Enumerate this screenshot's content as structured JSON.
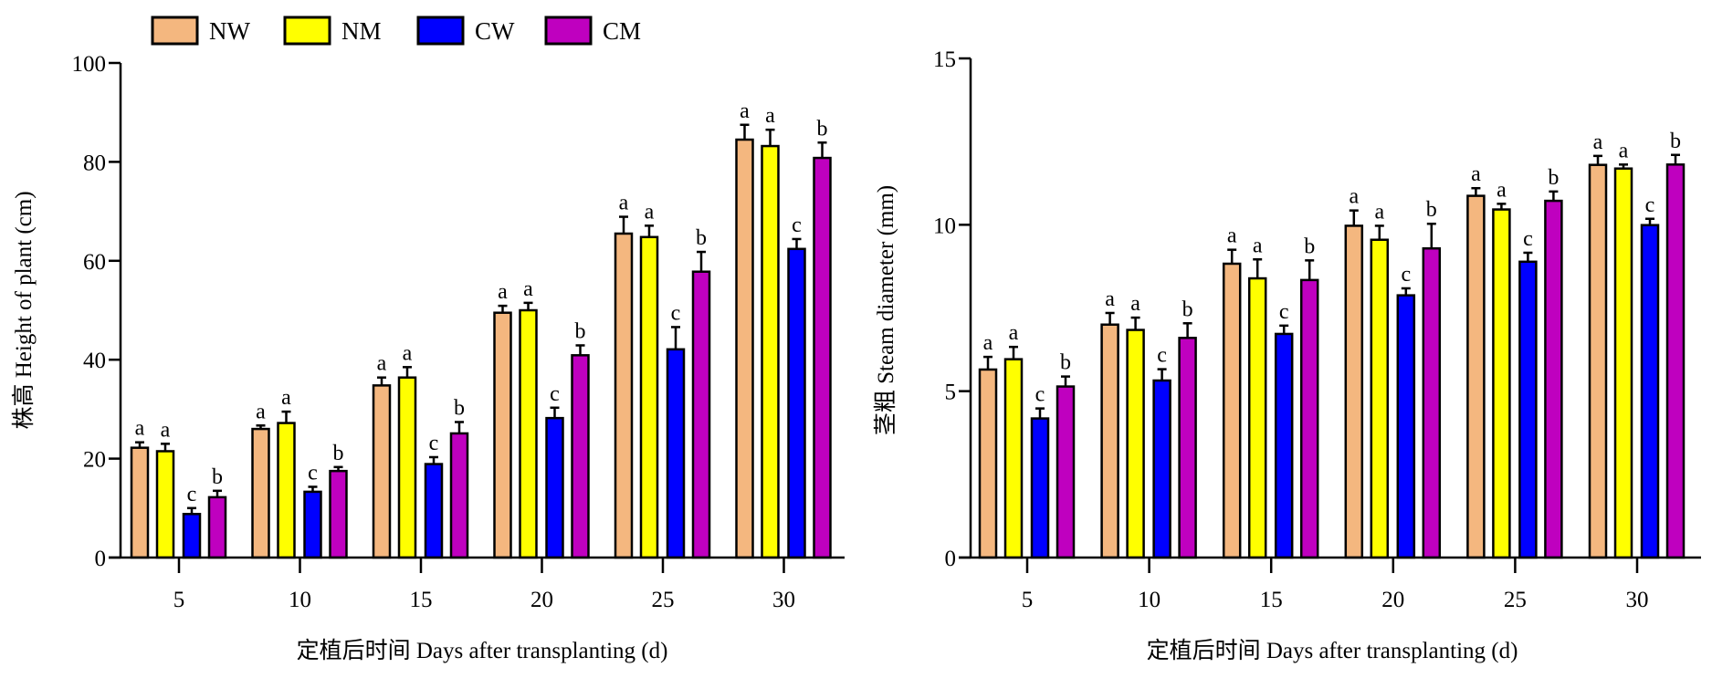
{
  "legend": [
    {
      "name": "NW",
      "color": "#F4B77F"
    },
    {
      "name": "NM",
      "color": "#FFFF00"
    },
    {
      "name": "CW",
      "color": "#0000FF"
    },
    {
      "name": "CM",
      "color": "#BF00BF"
    }
  ],
  "chart_data": [
    {
      "type": "bar",
      "title": "",
      "xlabel": "定植后时间 Days after transplanting (d)",
      "ylabel": "株高 Height of plant (cm)",
      "ylim": [
        0,
        100
      ],
      "yticks": [
        0,
        20,
        40,
        60,
        80,
        100
      ],
      "categories": [
        "5",
        "10",
        "15",
        "20",
        "25",
        "30"
      ],
      "series": [
        {
          "name": "NW",
          "values": [
            22.2,
            26.0,
            34.8,
            49.5,
            65.5,
            84.5
          ],
          "error": [
            1.1,
            0.7,
            1.6,
            1.4,
            3.4,
            3.0
          ],
          "letters": [
            "a",
            "a",
            "a",
            "a",
            "a",
            "a"
          ]
        },
        {
          "name": "NM",
          "values": [
            21.5,
            27.2,
            36.4,
            50.0,
            64.8,
            83.2
          ],
          "error": [
            1.5,
            2.3,
            2.1,
            1.5,
            2.3,
            3.3
          ],
          "letters": [
            "a",
            "a",
            "a",
            "a",
            "a",
            "a"
          ]
        },
        {
          "name": "CW",
          "values": [
            8.8,
            13.3,
            18.9,
            28.2,
            42.1,
            62.4
          ],
          "error": [
            1.2,
            1.0,
            1.4,
            2.1,
            4.5,
            2.0
          ],
          "letters": [
            "c",
            "c",
            "c",
            "c",
            "c",
            "c"
          ]
        },
        {
          "name": "CM",
          "values": [
            12.2,
            17.5,
            25.1,
            40.9,
            57.8,
            80.8
          ],
          "error": [
            1.3,
            0.8,
            2.3,
            2.0,
            4.0,
            3.1
          ],
          "letters": [
            "b",
            "b",
            "b",
            "b",
            "b",
            "b"
          ]
        }
      ],
      "grid": false
    },
    {
      "type": "bar",
      "title": "",
      "xlabel": "定植后时间 Days after transplanting (d)",
      "ylabel": "茎粗 Steam diameter (mm)",
      "ylim": [
        0,
        15
      ],
      "yticks": [
        0,
        5,
        10,
        15
      ],
      "categories": [
        "5",
        "10",
        "15",
        "20",
        "25",
        "30"
      ],
      "series": [
        {
          "name": "NW",
          "values": [
            5.65,
            7.0,
            8.83,
            9.97,
            10.87,
            11.8
          ],
          "error": [
            0.38,
            0.35,
            0.42,
            0.46,
            0.23,
            0.27
          ],
          "letters": [
            "a",
            "a",
            "a",
            "a",
            "a",
            "a"
          ]
        },
        {
          "name": "NM",
          "values": [
            5.96,
            6.84,
            8.39,
            9.55,
            10.46,
            11.69
          ],
          "error": [
            0.37,
            0.37,
            0.57,
            0.42,
            0.17,
            0.12
          ],
          "letters": [
            "a",
            "a",
            "a",
            "a",
            "a",
            "a"
          ]
        },
        {
          "name": "CW",
          "values": [
            4.18,
            5.32,
            6.72,
            7.88,
            8.89,
            9.99
          ],
          "error": [
            0.3,
            0.34,
            0.25,
            0.21,
            0.27,
            0.19
          ],
          "letters": [
            "c",
            "c",
            "c",
            "c",
            "c",
            "c"
          ]
        },
        {
          "name": "CM",
          "values": [
            5.14,
            6.6,
            8.34,
            9.29,
            10.72,
            11.81
          ],
          "error": [
            0.3,
            0.44,
            0.59,
            0.74,
            0.28,
            0.29
          ],
          "letters": [
            "b",
            "b",
            "b",
            "b",
            "b",
            "b"
          ]
        }
      ],
      "grid": false
    }
  ]
}
